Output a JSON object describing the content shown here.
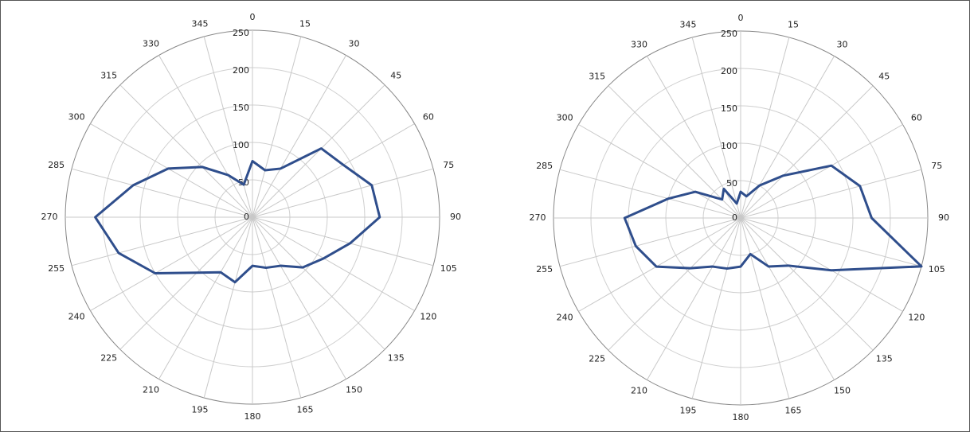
{
  "chart_data": [
    {
      "type": "polar_line",
      "theta": [
        0,
        15,
        30,
        45,
        60,
        75,
        90,
        105,
        120,
        135,
        150,
        165,
        180,
        195,
        210,
        225,
        240,
        255,
        270,
        285,
        300,
        315,
        330,
        345
      ],
      "values": [
        75,
        65,
        75,
        130,
        140,
        165,
        170,
        135,
        110,
        95,
        75,
        70,
        65,
        90,
        85,
        105,
        150,
        185,
        210,
        165,
        130,
        95,
        65,
        45
      ],
      "color": "#2f4e8c",
      "rlim": [
        0,
        250
      ],
      "rticks": [
        0,
        50,
        100,
        150,
        200,
        250
      ],
      "grid": true
    },
    {
      "type": "polar_line",
      "theta": [
        0,
        15,
        30,
        45,
        60,
        75,
        90,
        105,
        120,
        135,
        150,
        165,
        180,
        195,
        210,
        225,
        240,
        255,
        270,
        285,
        300,
        315,
        330,
        345
      ],
      "values": [
        35,
        30,
        50,
        80,
        140,
        165,
        175,
        250,
        140,
        90,
        75,
        50,
        65,
        70,
        75,
        95,
        130,
        145,
        155,
        100,
        70,
        35,
        45,
        20
      ],
      "color": "#2f4e8c",
      "rlim": [
        0,
        250
      ],
      "rticks": [
        0,
        50,
        100,
        150,
        200,
        250
      ],
      "grid": true
    }
  ]
}
